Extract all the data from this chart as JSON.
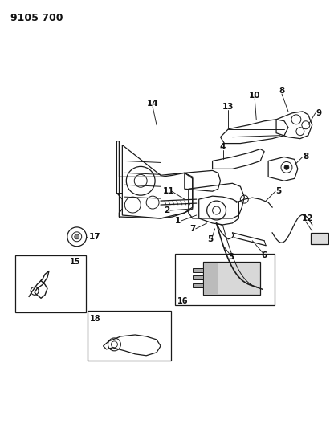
{
  "title": "9105 700",
  "bg_color": "#ffffff",
  "title_fontsize": 9,
  "title_fontweight": "bold",
  "fig_width": 4.11,
  "fig_height": 5.33,
  "dpi": 100,
  "line_color": "#1a1a1a",
  "label_color": "#111111",
  "label_fontsize": 7.5,
  "label_fontweight": "bold"
}
